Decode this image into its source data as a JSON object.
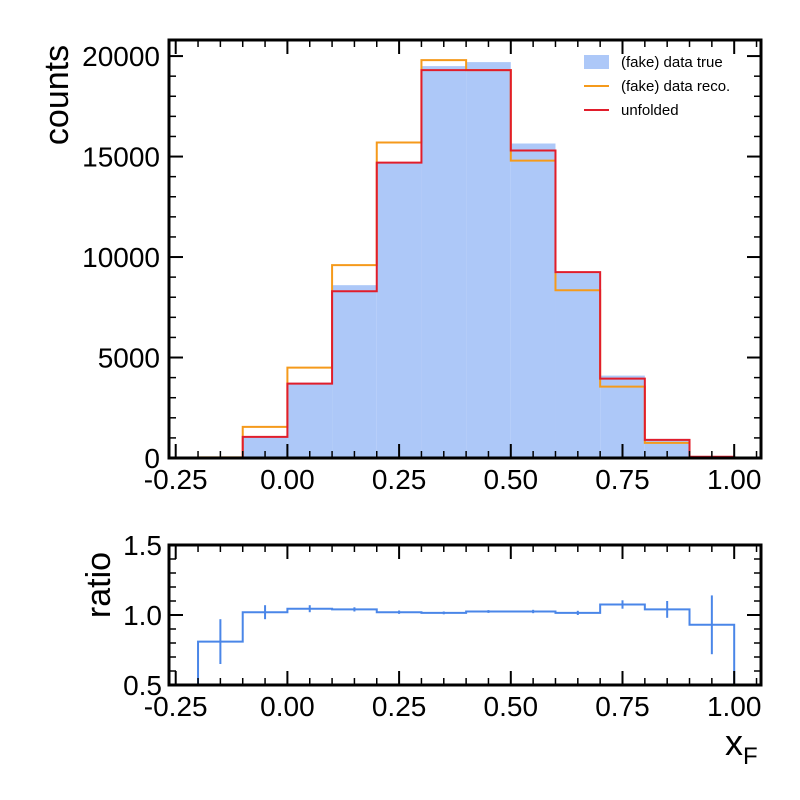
{
  "chart_data": [
    {
      "type": "histogram",
      "ylabel": "counts",
      "xlim": [
        -0.265,
        1.06
      ],
      "ylim": [
        0,
        20800
      ],
      "bin_edges": [
        -0.2,
        -0.1,
        0.0,
        0.1,
        0.2,
        0.3,
        0.4,
        0.5,
        0.6,
        0.7,
        0.8,
        0.9,
        1.0
      ],
      "x_ticks": [
        "-0.25",
        "0.00",
        "0.25",
        "0.50",
        "0.75",
        "1.00"
      ],
      "x_tick_values": [
        -0.25,
        0.0,
        0.25,
        0.5,
        0.75,
        1.0
      ],
      "y_ticks": [
        "0",
        "5000",
        "10000",
        "15000",
        "20000"
      ],
      "y_tick_values": [
        0,
        5000,
        10000,
        15000,
        20000
      ],
      "legend_position": "top-right",
      "series": [
        {
          "name": "(fake) data true",
          "style": "filled",
          "color": "#adc8f8",
          "values": [
            20,
            1050,
            3750,
            8600,
            14700,
            19500,
            19700,
            15650,
            9200,
            4100,
            950,
            60
          ]
        },
        {
          "name": "(fake) data reco.",
          "style": "step",
          "color": "#f59a1b",
          "values": [
            30,
            1550,
            4500,
            9600,
            15700,
            19800,
            19300,
            14800,
            8350,
            3550,
            750,
            40
          ]
        },
        {
          "name": "unfolded",
          "style": "step",
          "color": "#e11d2b",
          "values": [
            20,
            1050,
            3700,
            8300,
            14700,
            19300,
            19300,
            15300,
            9250,
            3950,
            900,
            60
          ]
        }
      ]
    },
    {
      "type": "line",
      "ylabel": "ratio",
      "xlabel": "x",
      "xlabel_sub": "F",
      "xlim": [
        -0.265,
        1.06
      ],
      "ylim": [
        0.5,
        1.5
      ],
      "bin_edges": [
        -0.2,
        -0.1,
        0.0,
        0.1,
        0.2,
        0.3,
        0.4,
        0.5,
        0.6,
        0.7,
        0.8,
        0.9,
        1.0
      ],
      "x_ticks": [
        "-0.25",
        "0.00",
        "0.25",
        "0.50",
        "0.75",
        "1.00"
      ],
      "x_tick_values": [
        -0.25,
        0.0,
        0.25,
        0.5,
        0.75,
        1.0
      ],
      "y_ticks": [
        "0.5",
        "1.0",
        "1.5"
      ],
      "y_tick_values": [
        0.5,
        1.0,
        1.5
      ],
      "series": [
        {
          "color": "#4a86e8",
          "values": [
            0.81,
            1.02,
            1.045,
            1.04,
            1.02,
            1.015,
            1.025,
            1.025,
            1.015,
            1.075,
            1.04,
            0.93
          ],
          "errors": [
            0.16,
            0.05,
            0.025,
            0.015,
            0.012,
            0.01,
            0.01,
            0.012,
            0.015,
            0.03,
            0.06,
            0.21
          ]
        }
      ]
    }
  ]
}
